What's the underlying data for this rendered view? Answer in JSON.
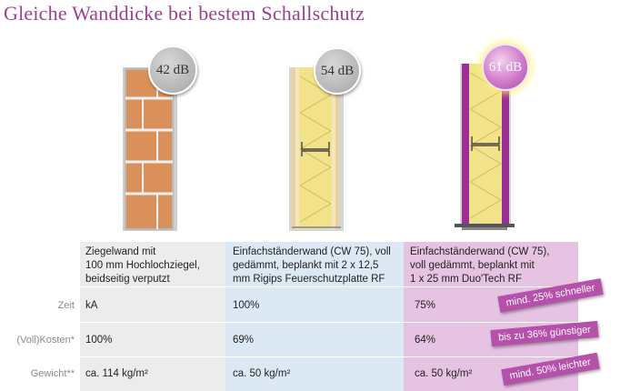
{
  "title": "Gleiche Wanddicke bei bestem Schallschutz",
  "walls": [
    {
      "db": "42 dB"
    },
    {
      "db": "54 dB"
    },
    {
      "db": "61 dB"
    }
  ],
  "columns": [
    {
      "header": [
        "Ziegelwand mit",
        "100 mm Hochlochziegel,",
        "beidseitig verputzt"
      ],
      "zeit": "kA",
      "kosten": "100%",
      "gewicht": "ca. 114 kg/m²"
    },
    {
      "header": [
        "Einfachständerwand (CW 75), voll",
        "gedämmt, beplankt mit 2 x 12,5",
        "mm Rigips Feuerschutzplatte RF"
      ],
      "zeit": "100%",
      "kosten": "69%",
      "gewicht": "ca. 50 kg/m²"
    },
    {
      "header": [
        "Einfachständerwand (CW 75),",
        "voll gedämmt, beplankt mit",
        "1 x 25 mm Duo'Tech RF"
      ],
      "zeit": "75%",
      "kosten": "64%",
      "gewicht": "ca. 50 kg/m²"
    }
  ],
  "row_labels": {
    "zeit": "Zeit",
    "kosten": "(Voll)Kosten*",
    "gewicht": "Gewicht**"
  },
  "tags": {
    "zeit": "mind. 25% schneller",
    "kosten": "bis zu 36% günstiger",
    "gewicht": "mind. 50% leichter"
  },
  "colors": {
    "title": "#9b3f8f",
    "col1": "#ececec",
    "col2": "#dde8f5",
    "col3": "#e6c3e3",
    "tag": "#b551ab"
  }
}
